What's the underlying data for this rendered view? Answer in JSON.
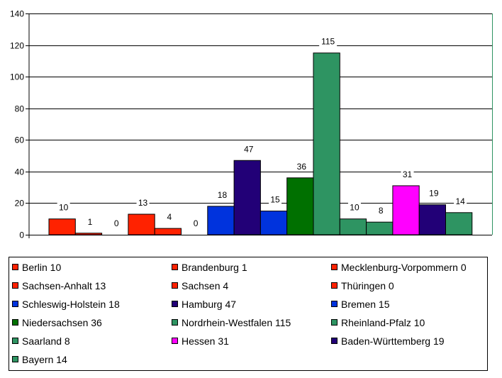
{
  "chart_data": {
    "type": "bar",
    "title": "",
    "xlabel": "",
    "ylabel": "",
    "ylim": [
      0,
      140
    ],
    "yticks": [
      0,
      20,
      40,
      60,
      80,
      100,
      120,
      140
    ],
    "grid": true,
    "legend_position": "bottom",
    "bars": [
      {
        "name": "Berlin",
        "value": 10,
        "color": "#FF2200"
      },
      {
        "name": "Brandenburg",
        "value": 1,
        "color": "#FF2200"
      },
      {
        "name": "Mecklenburg-Vorpommern",
        "value": 0,
        "color": "#FF2200"
      },
      {
        "name": "Sachsen-Anhalt",
        "value": 13,
        "color": "#FF2200"
      },
      {
        "name": "Sachsen",
        "value": 4,
        "color": "#FF2200"
      },
      {
        "name": "Thüringen",
        "value": 0,
        "color": "#FF2200"
      },
      {
        "name": "Schleswig-Holstein",
        "value": 18,
        "color": "#0033DD"
      },
      {
        "name": "Hamburg",
        "value": 47,
        "color": "#220077"
      },
      {
        "name": "Bremen",
        "value": 15,
        "color": "#0033DD"
      },
      {
        "name": "Niedersachsen",
        "value": 36,
        "color": "#007000"
      },
      {
        "name": "Nordrhein-Westfalen",
        "value": 115,
        "color": "#2E9462"
      },
      {
        "name": "Rheinland-Pfalz",
        "value": 10,
        "color": "#2E9462"
      },
      {
        "name": "Saarland",
        "value": 8,
        "color": "#2E9462"
      },
      {
        "name": "Hessen",
        "value": 31,
        "color": "#FF00FF"
      },
      {
        "name": "Baden-Württemberg",
        "value": 19,
        "color": "#220077"
      },
      {
        "name": "Bayern",
        "value": 14,
        "color": "#2E9462"
      }
    ],
    "legend_entries": [
      "Berlin 10",
      "Brandenburg 1",
      "Mecklenburg-Vorpommern 0",
      "Sachsen-Anhalt 13",
      "Sachsen 4",
      "Thüringen 0",
      "Schleswig-Holstein 18",
      "Hamburg 47",
      "Bremen 15",
      "Niedersachsen 36",
      "Nordrhein-Westfalen 115",
      "Rheinland-Pfalz 10",
      "Saarland 8",
      "Hessen 31",
      "Baden-Württemberg 19",
      "Bayern 14"
    ]
  }
}
